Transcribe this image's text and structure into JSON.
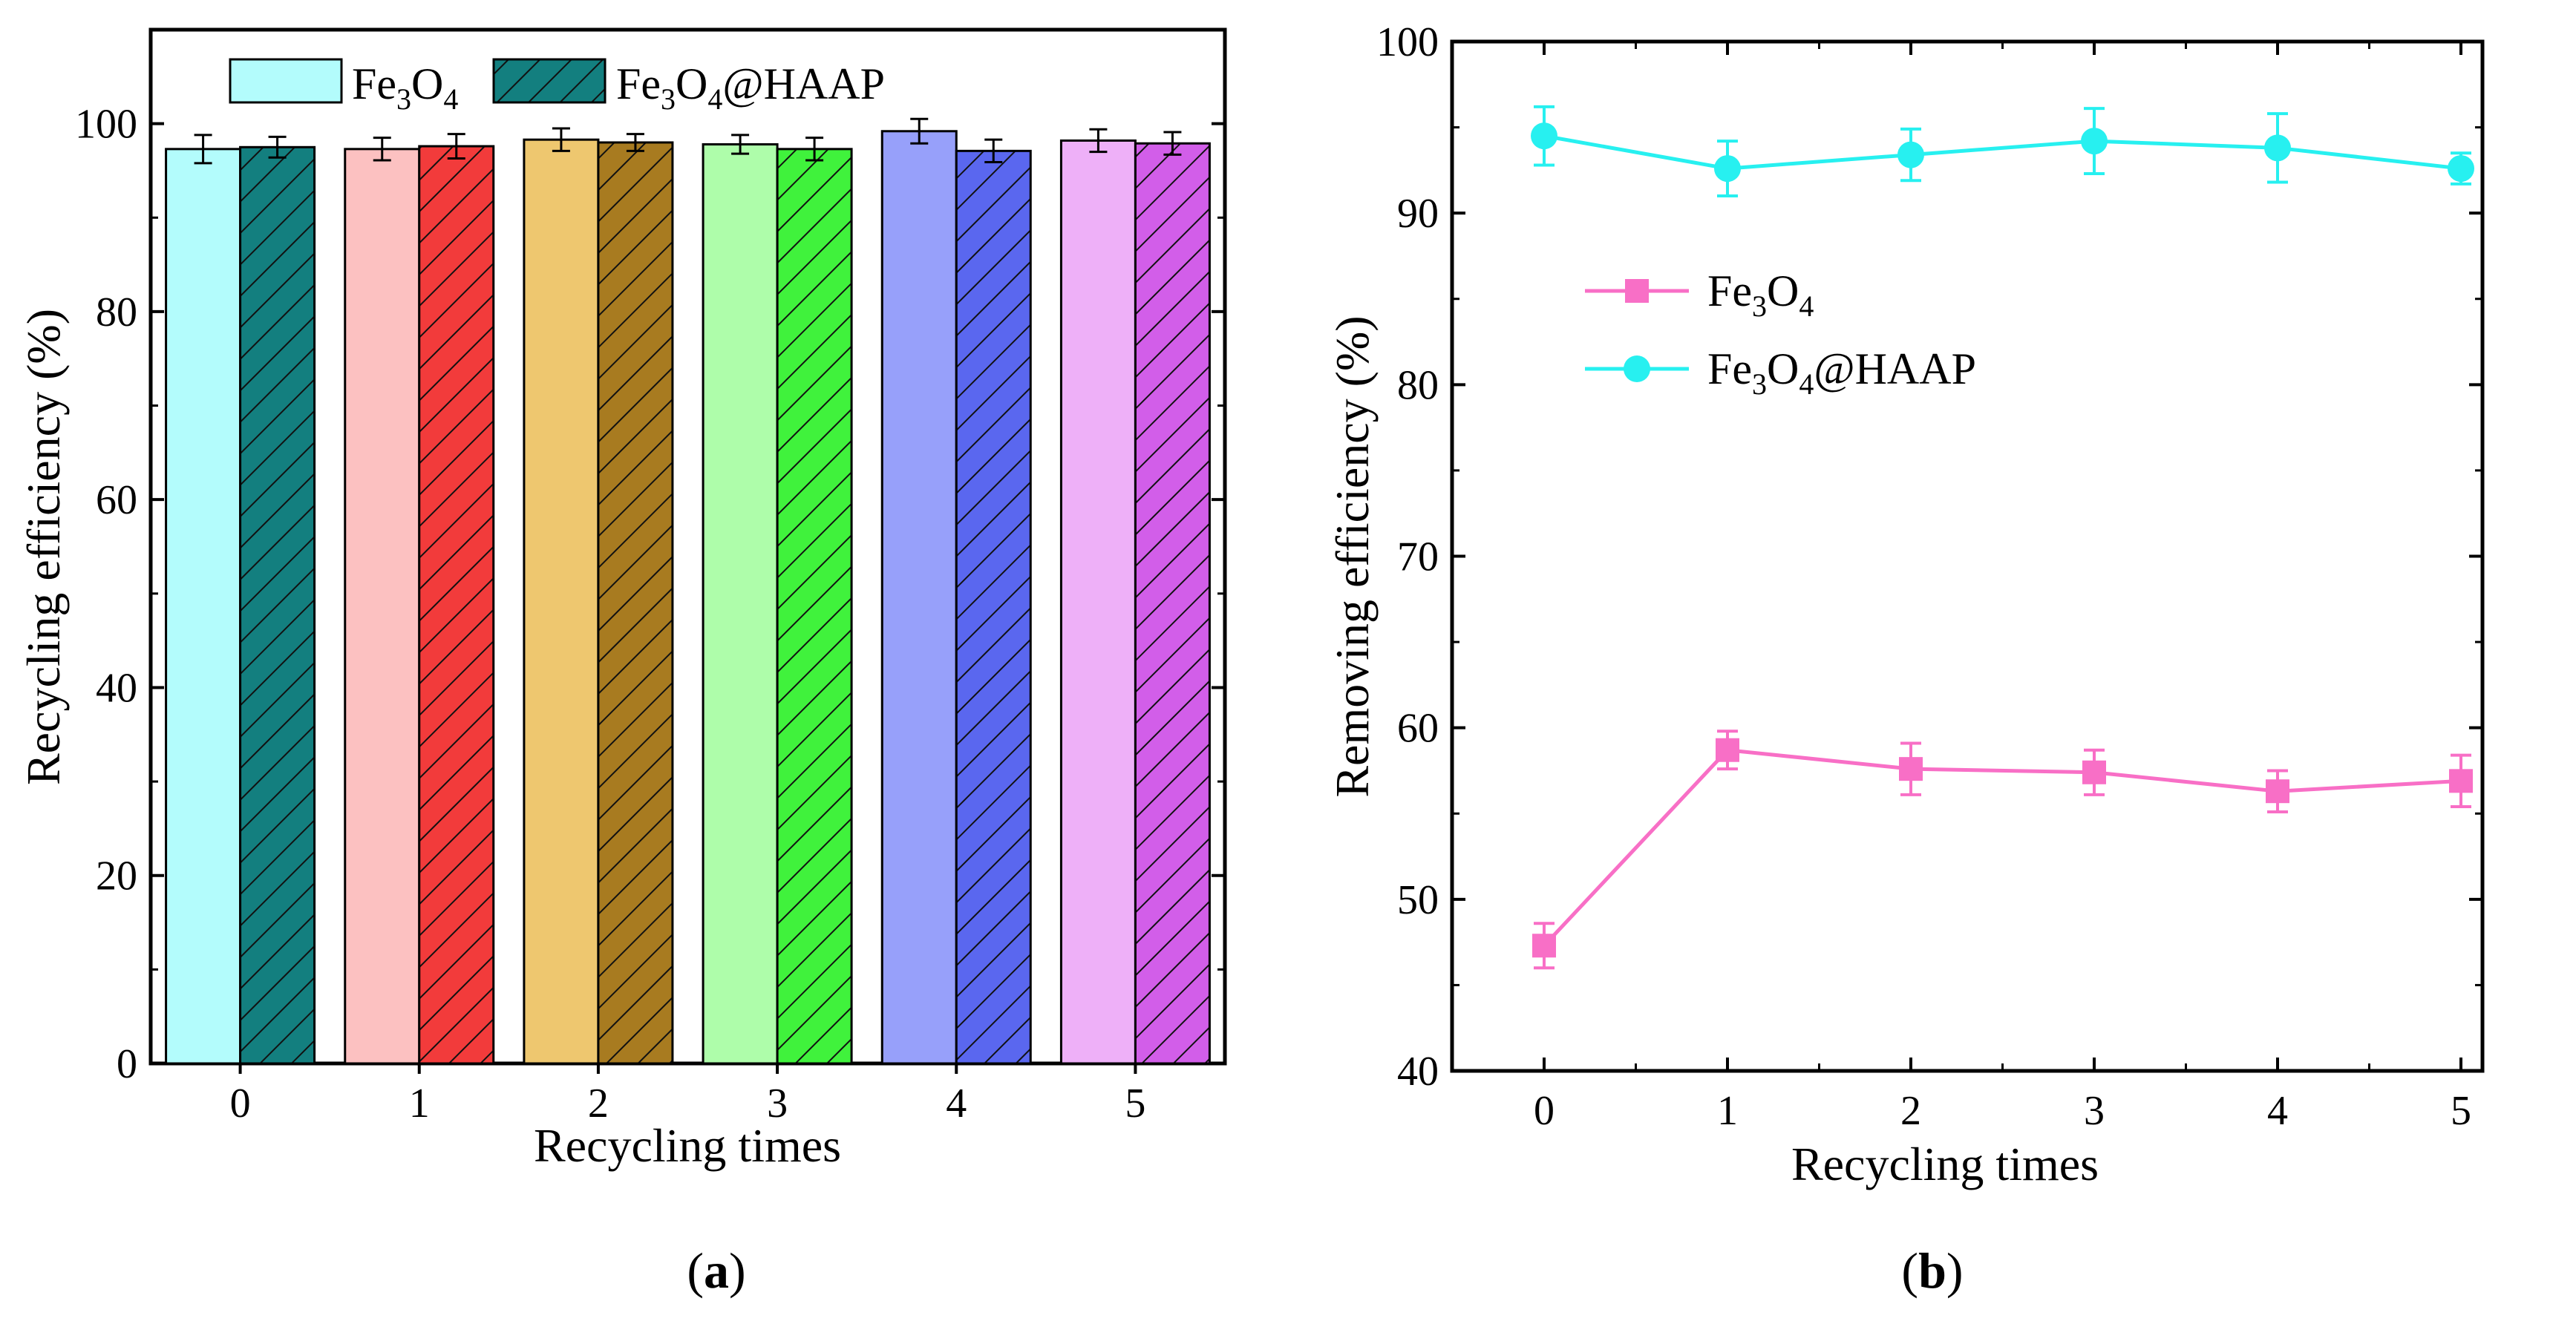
{
  "chart_data": [
    {
      "panel": "(a)",
      "type": "bar",
      "categories": [
        "0",
        "1",
        "2",
        "3",
        "4",
        "5"
      ],
      "xlabel": "Recycling times",
      "ylabel": "Recycling efficiency (%)",
      "ylim": [
        0,
        110
      ],
      "yticks": [
        "0",
        "20",
        "40",
        "60",
        "80",
        "100"
      ],
      "legend_position": "top-center",
      "series": [
        {
          "name": "Fe3O4",
          "legend_parts": [
            [
              "Fe",
              false
            ],
            [
              "3",
              true
            ],
            [
              "O",
              false
            ],
            [
              "4",
              true
            ]
          ],
          "pattern": "solid",
          "values": [
            97.3,
            97.3,
            98.3,
            97.8,
            99.2,
            98.2
          ],
          "errors": [
            1.5,
            1.2,
            1.2,
            1.0,
            1.3,
            1.2
          ],
          "colors": [
            "#b3fcfc",
            "#fcc1c1",
            "#eec76f",
            "#aefdaa",
            "#97a0fa",
            "#eeb0f8"
          ]
        },
        {
          "name": "Fe3O4@HAAP",
          "legend_parts": [
            [
              "Fe",
              false
            ],
            [
              "3",
              true
            ],
            [
              "O",
              false
            ],
            [
              "4",
              true
            ],
            [
              "@HAAP",
              false
            ]
          ],
          "pattern": "hatched",
          "values": [
            97.5,
            97.6,
            98.0,
            97.3,
            97.1,
            97.9
          ],
          "errors": [
            1.1,
            1.3,
            0.9,
            1.2,
            1.2,
            1.2
          ],
          "colors": [
            "#137f7f",
            "#f23b3b",
            "#a87b20",
            "#40f23c",
            "#5a67ef",
            "#d25ee9"
          ]
        }
      ]
    },
    {
      "panel": "(b)",
      "type": "line",
      "x": [
        0,
        1,
        2,
        3,
        4,
        5
      ],
      "xticks": [
        "0",
        "1",
        "2",
        "3",
        "4",
        "5"
      ],
      "xlabel": "Recycling times",
      "ylabel": "Removing efficiency (%)",
      "ylim": [
        40,
        100
      ],
      "yticks": [
        "40",
        "50",
        "60",
        "70",
        "80",
        "90",
        "100"
      ],
      "legend_position": "center-left",
      "series": [
        {
          "name": "Fe3O4",
          "legend_parts": [
            [
              "Fe",
              false
            ],
            [
              "3",
              true
            ],
            [
              "O",
              false
            ],
            [
              "4",
              true
            ]
          ],
          "marker": "square",
          "color": "#f86fc6",
          "values": [
            47.3,
            58.7,
            57.6,
            57.4,
            56.3,
            56.9
          ],
          "errors": [
            1.3,
            1.1,
            1.5,
            1.3,
            1.2,
            1.5
          ]
        },
        {
          "name": "Fe3O4@HAAP",
          "legend_parts": [
            [
              "Fe",
              false
            ],
            [
              "3",
              true
            ],
            [
              "O",
              false
            ],
            [
              "4",
              true
            ],
            [
              "@HAAP",
              false
            ]
          ],
          "marker": "circle",
          "color": "#27f0f0",
          "values": [
            94.5,
            92.6,
            93.4,
            94.2,
            93.8,
            92.6
          ],
          "errors": [
            1.7,
            1.6,
            1.5,
            1.9,
            2.0,
            0.9
          ]
        }
      ]
    }
  ],
  "captions": {
    "a": "a",
    "b": "b",
    "open_paren": "(",
    "close_paren": ")"
  }
}
